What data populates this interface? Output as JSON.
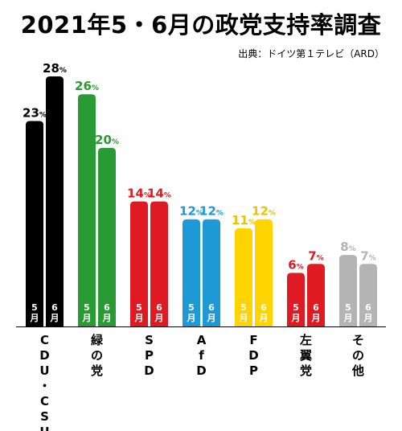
{
  "header": {
    "title": "2021年5・6月の政党支持率調査",
    "source": "出典：ドイツ第１テレビ（ARD）"
  },
  "chart_data": {
    "type": "bar",
    "title": "2021年5・6月の政党支持率調査",
    "source": "出典：ドイツ第１テレビ（ARD）",
    "categories": [
      "CDU・CSU",
      "緑の党",
      "SPD",
      "AfD",
      "FDP",
      "左翼党",
      "その他"
    ],
    "series": [
      {
        "name": "5月",
        "values": [
          23,
          26,
          14,
          12,
          11,
          6,
          8
        ]
      },
      {
        "name": "6月",
        "values": [
          28,
          20,
          14,
          12,
          12,
          7,
          7
        ]
      }
    ],
    "unit": "%",
    "colors": [
      "#000000",
      "#2a9a34",
      "#e01a22",
      "#1d9ad6",
      "#ffd400",
      "#e01a22",
      "#b4b4b4"
    ],
    "legend": "none",
    "grid": false
  }
}
